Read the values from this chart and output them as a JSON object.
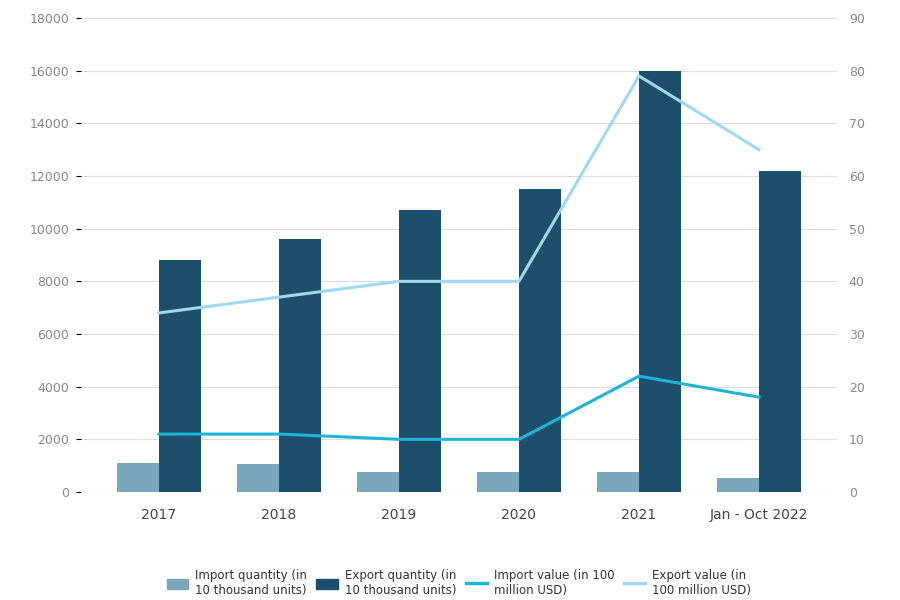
{
  "categories": [
    "2017",
    "2018",
    "2019",
    "2020",
    "2021",
    "Jan - Oct 2022"
  ],
  "import_quantity": [
    1100,
    1050,
    750,
    750,
    750,
    550
  ],
  "export_quantity": [
    8800,
    9600,
    10700,
    11500,
    16000,
    12200
  ],
  "import_value": [
    11,
    11,
    10,
    10,
    22,
    18
  ],
  "export_value": [
    34,
    37,
    40,
    40,
    79,
    65
  ],
  "bar_color_import": "#7BA7BC",
  "bar_color_export": "#1B4F6B",
  "line_color_import": "#1CB5D8",
  "line_color_export": "#A0D8EF",
  "background_color": "#FFFFFF",
  "grid_color": "#DDDDDD",
  "ylim_left": [
    0,
    18000
  ],
  "ylim_right": [
    0,
    90
  ],
  "yticks_left": [
    0,
    2000,
    4000,
    6000,
    8000,
    10000,
    12000,
    14000,
    16000,
    18000
  ],
  "yticks_right": [
    0,
    10,
    20,
    30,
    40,
    50,
    60,
    70,
    80,
    90
  ],
  "tick_color": "#888888",
  "legend_labels": [
    "Import quantity (in\n10 thousand units)",
    "Export quantity (in\n10 thousand units)",
    "Import value (in 100\nmillion USD)",
    "Export value (in\n100 million USD)"
  ]
}
